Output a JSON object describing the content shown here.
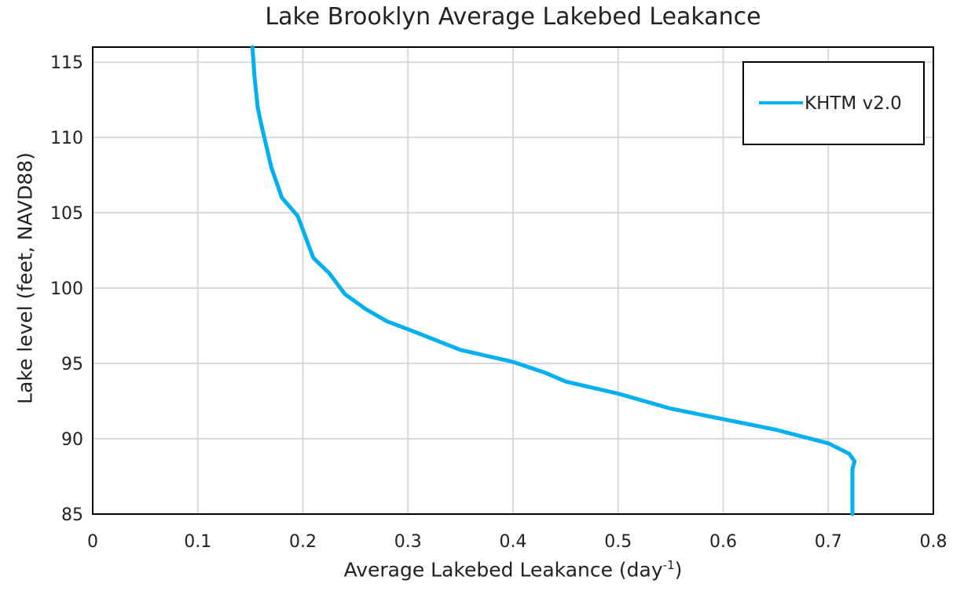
{
  "chart_data": {
    "type": "line",
    "title": "Lake Brooklyn Average Lakebed Leakance",
    "xlabel": "Average Lakebed Leakance (day",
    "xlabel_superscript": "-1",
    "xlabel_suffix": ")",
    "ylabel": "Lake level (feet, NAVD88)",
    "xlim": [
      0,
      0.8
    ],
    "ylim": [
      85,
      116
    ],
    "x_ticks": [
      "0",
      "0.1",
      "0.2",
      "0.3",
      "0.4",
      "0.5",
      "0.6",
      "0.7",
      "0.8"
    ],
    "y_ticks": [
      "85",
      "90",
      "95",
      "100",
      "105",
      "110",
      "115"
    ],
    "grid": true,
    "legend_position": "top-right",
    "series": [
      {
        "name": "KHTM v2.0",
        "color": "#00B0F0",
        "points": [
          [
            0.723,
            85
          ],
          [
            0.723,
            86
          ],
          [
            0.723,
            87
          ],
          [
            0.723,
            88
          ],
          [
            0.725,
            88.5
          ],
          [
            0.72,
            89
          ],
          [
            0.7,
            89.7
          ],
          [
            0.65,
            90.6
          ],
          [
            0.6,
            91.3
          ],
          [
            0.55,
            92
          ],
          [
            0.5,
            93
          ],
          [
            0.45,
            93.8
          ],
          [
            0.43,
            94.4
          ],
          [
            0.4,
            95.1
          ],
          [
            0.35,
            95.9
          ],
          [
            0.31,
            97
          ],
          [
            0.28,
            97.8
          ],
          [
            0.26,
            98.6
          ],
          [
            0.24,
            99.6
          ],
          [
            0.225,
            101
          ],
          [
            0.21,
            102
          ],
          [
            0.195,
            104.8
          ],
          [
            0.18,
            106
          ],
          [
            0.17,
            108
          ],
          [
            0.16,
            111
          ],
          [
            0.157,
            112
          ],
          [
            0.154,
            114
          ],
          [
            0.152,
            116
          ]
        ]
      }
    ]
  }
}
